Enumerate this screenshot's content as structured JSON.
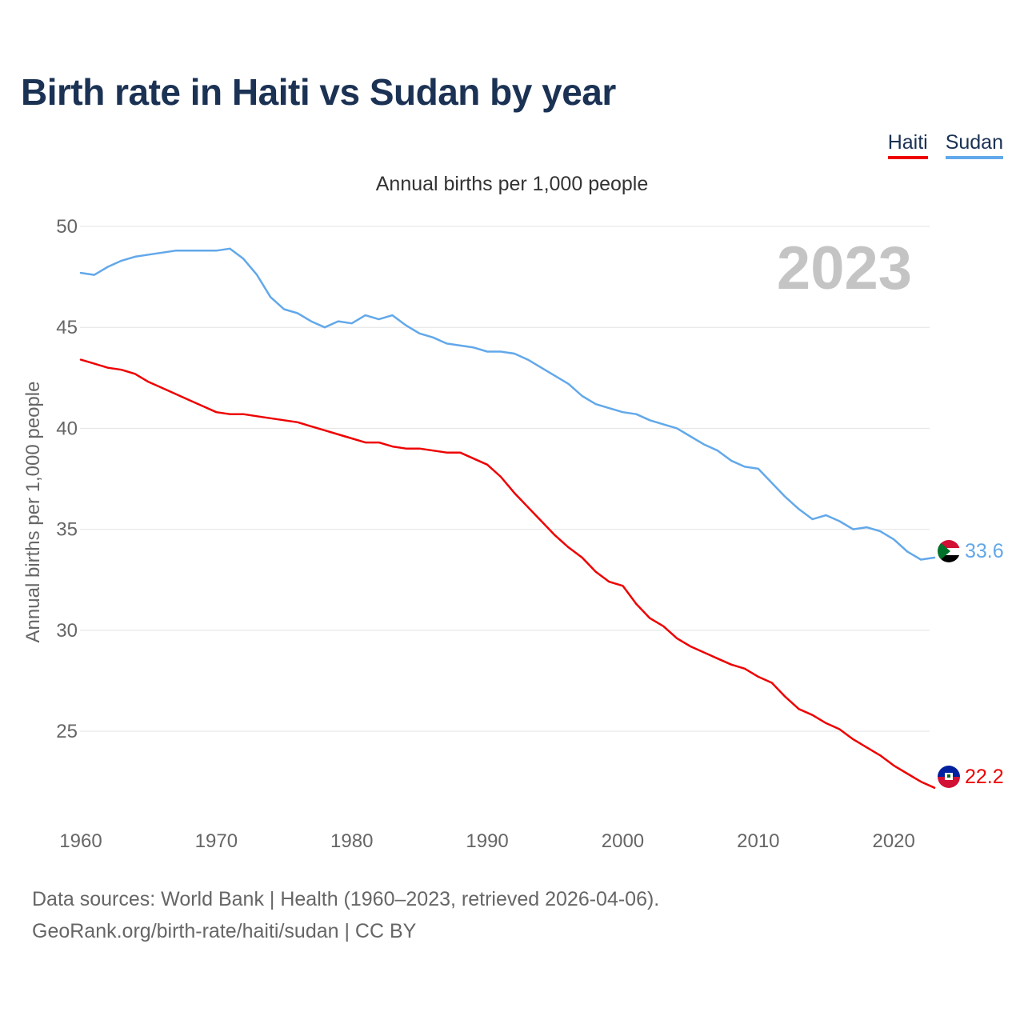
{
  "title": "Birth rate in Haiti vs Sudan by year",
  "legend": [
    {
      "name": "Haiti",
      "color": "#ee0000"
    },
    {
      "name": "Sudan",
      "color": "#62a8ea"
    }
  ],
  "subtitle": "Annual births per 1,000 people",
  "ylabel": "Annual births per 1,000 people",
  "year_overlay": "2023",
  "end_labels": {
    "haiti": "22.2",
    "sudan": "33.6"
  },
  "source": {
    "line1": "Data sources: World Bank | Health (1960–2023, retrieved 2026-04-06).",
    "line2": "GeoRank.org/birth-rate/haiti/sudan | CC BY"
  },
  "chart_data": {
    "type": "line",
    "title": "Birth rate in Haiti vs Sudan by year",
    "subtitle": "Annual births per 1,000 people",
    "xlabel": "",
    "ylabel": "Annual births per 1,000 people",
    "xlim": [
      1960,
      2023
    ],
    "ylim": [
      21,
      50
    ],
    "x_ticks": [
      1960,
      1970,
      1980,
      1990,
      2000,
      2010,
      2020
    ],
    "y_ticks": [
      25,
      30,
      35,
      40,
      45,
      50
    ],
    "grid": true,
    "legend": "top-right",
    "x": [
      1960,
      1961,
      1962,
      1963,
      1964,
      1965,
      1966,
      1967,
      1968,
      1969,
      1970,
      1971,
      1972,
      1973,
      1974,
      1975,
      1976,
      1977,
      1978,
      1979,
      1980,
      1981,
      1982,
      1983,
      1984,
      1985,
      1986,
      1987,
      1988,
      1989,
      1990,
      1991,
      1992,
      1993,
      1994,
      1995,
      1996,
      1997,
      1998,
      1999,
      2000,
      2001,
      2002,
      2003,
      2004,
      2005,
      2006,
      2007,
      2008,
      2009,
      2010,
      2011,
      2012,
      2013,
      2014,
      2015,
      2016,
      2017,
      2018,
      2019,
      2020,
      2021,
      2022,
      2023
    ],
    "series": [
      {
        "name": "Haiti",
        "color": "#ee0000",
        "values": [
          43.4,
          43.2,
          43.0,
          42.9,
          42.7,
          42.3,
          42.0,
          41.7,
          41.4,
          41.1,
          40.8,
          40.7,
          40.7,
          40.6,
          40.5,
          40.4,
          40.3,
          40.1,
          39.9,
          39.7,
          39.5,
          39.3,
          39.3,
          39.1,
          39.0,
          39.0,
          38.9,
          38.8,
          38.8,
          38.5,
          38.2,
          37.6,
          36.8,
          36.1,
          35.4,
          34.7,
          34.1,
          33.6,
          32.9,
          32.4,
          32.2,
          31.3,
          30.6,
          30.2,
          29.6,
          29.2,
          28.9,
          28.6,
          28.3,
          28.1,
          27.7,
          27.4,
          26.7,
          26.1,
          25.8,
          25.4,
          25.1,
          24.6,
          24.2,
          23.8,
          23.3,
          22.9,
          22.5,
          22.2
        ]
      },
      {
        "name": "Sudan",
        "color": "#62a8ea",
        "values": [
          47.7,
          47.6,
          48.0,
          48.3,
          48.5,
          48.6,
          48.7,
          48.8,
          48.8,
          48.8,
          48.8,
          48.9,
          48.4,
          47.6,
          46.5,
          45.9,
          45.7,
          45.3,
          45.0,
          45.3,
          45.2,
          45.6,
          45.4,
          45.6,
          45.1,
          44.7,
          44.5,
          44.2,
          44.1,
          44.0,
          43.8,
          43.8,
          43.7,
          43.4,
          43.0,
          42.6,
          42.2,
          41.6,
          41.2,
          41.0,
          40.8,
          40.7,
          40.4,
          40.2,
          40.0,
          39.6,
          39.2,
          38.9,
          38.4,
          38.1,
          38.0,
          37.3,
          36.6,
          36.0,
          35.5,
          35.7,
          35.4,
          35.0,
          35.1,
          34.9,
          34.5,
          33.9,
          33.5,
          33.6
        ]
      }
    ]
  }
}
